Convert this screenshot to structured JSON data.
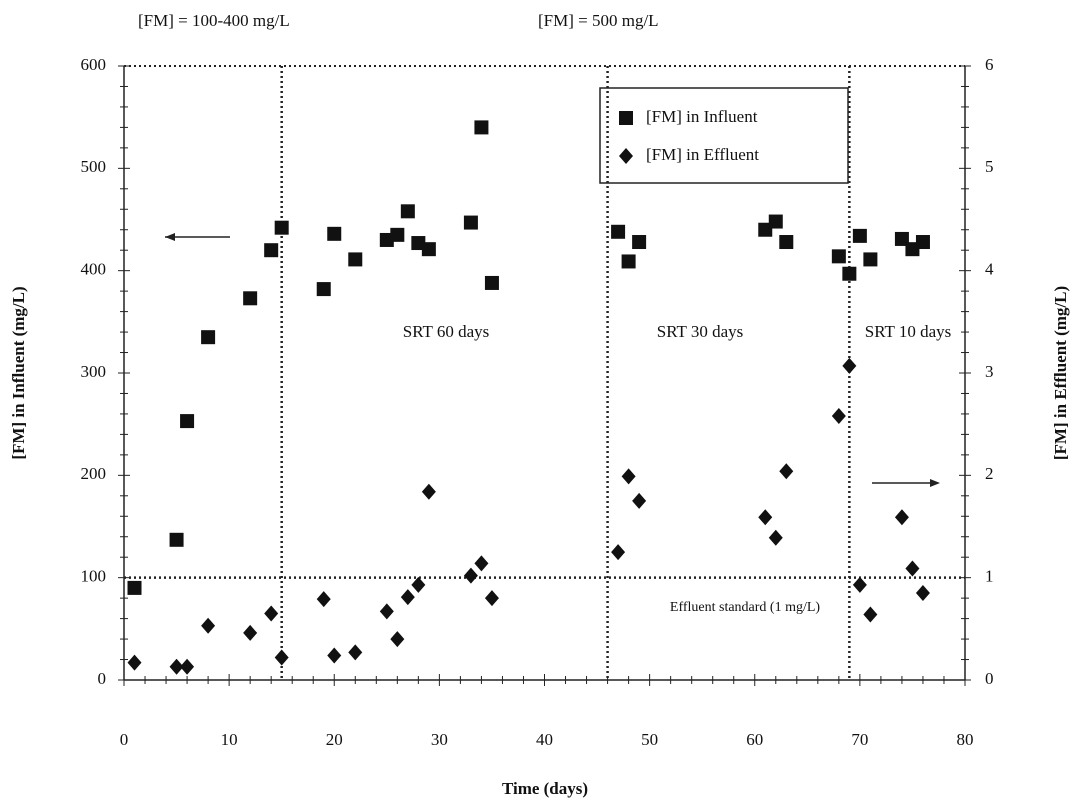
{
  "chart_data": {
    "type": "scatter",
    "x_label": "Time (days)",
    "y_label": "[FM] in Influent (mg/L)",
    "y2_label": "[FM] in Effluent (mg/L)",
    "annotations": [
      "[FM] = 100-400 mg/L",
      "[FM] = 500 mg/L",
      "SRT 60 days",
      "SRT 30 days",
      "SRT 10 days",
      "Effluent standard (1 mg/L)"
    ],
    "reference_lines_x": [
      15,
      46,
      69
    ],
    "reference_line_y": 100,
    "xlim": [
      0,
      80
    ],
    "xticks": [
      0,
      10,
      20,
      30,
      40,
      50,
      60,
      70,
      80
    ],
    "ylim": [
      0,
      600
    ],
    "yticks": [
      0,
      100,
      200,
      300,
      400,
      500,
      600
    ],
    "y2lim": [
      0,
      6
    ],
    "y2ticks": [
      0,
      1,
      2,
      3,
      4,
      5,
      6
    ],
    "legend": "upper right",
    "series": [
      {
        "name": "[FM] in Influent",
        "color": "#111111",
        "marker": "square",
        "x": [
          1,
          5,
          6,
          8,
          12,
          14,
          15,
          19,
          20,
          22,
          25,
          26,
          27,
          28,
          29,
          33,
          34,
          35,
          47,
          48,
          49,
          61,
          62,
          63,
          68,
          69,
          70,
          71,
          74,
          75,
          76
        ],
        "values": [
          90,
          137,
          253,
          335,
          373,
          420,
          442,
          382,
          436,
          411,
          430,
          435,
          458,
          427,
          421,
          447,
          540,
          388,
          438,
          409,
          428,
          440,
          448,
          428,
          414,
          397,
          434,
          411,
          431,
          421,
          428
        ]
      },
      {
        "name": "[FM] in Effluent",
        "color": "#111111",
        "marker": "diamond",
        "axis": "y2",
        "x": [
          1,
          5,
          6,
          8,
          12,
          14,
          15,
          19,
          20,
          22,
          25,
          26,
          27,
          28,
          29,
          33,
          34,
          35,
          47,
          48,
          49,
          61,
          62,
          63,
          68,
          69,
          70,
          71,
          74,
          75,
          76
        ],
        "values": [
          0.17,
          0.13,
          0.13,
          0.53,
          0.46,
          0.65,
          0.22,
          0.79,
          0.24,
          0.27,
          0.67,
          0.4,
          0.81,
          0.93,
          1.84,
          1.02,
          1.14,
          0.8,
          1.25,
          1.99,
          1.75,
          1.59,
          1.39,
          2.04,
          2.58,
          3.07,
          0.93,
          0.64,
          1.59,
          1.09,
          0.85
        ]
      }
    ]
  }
}
